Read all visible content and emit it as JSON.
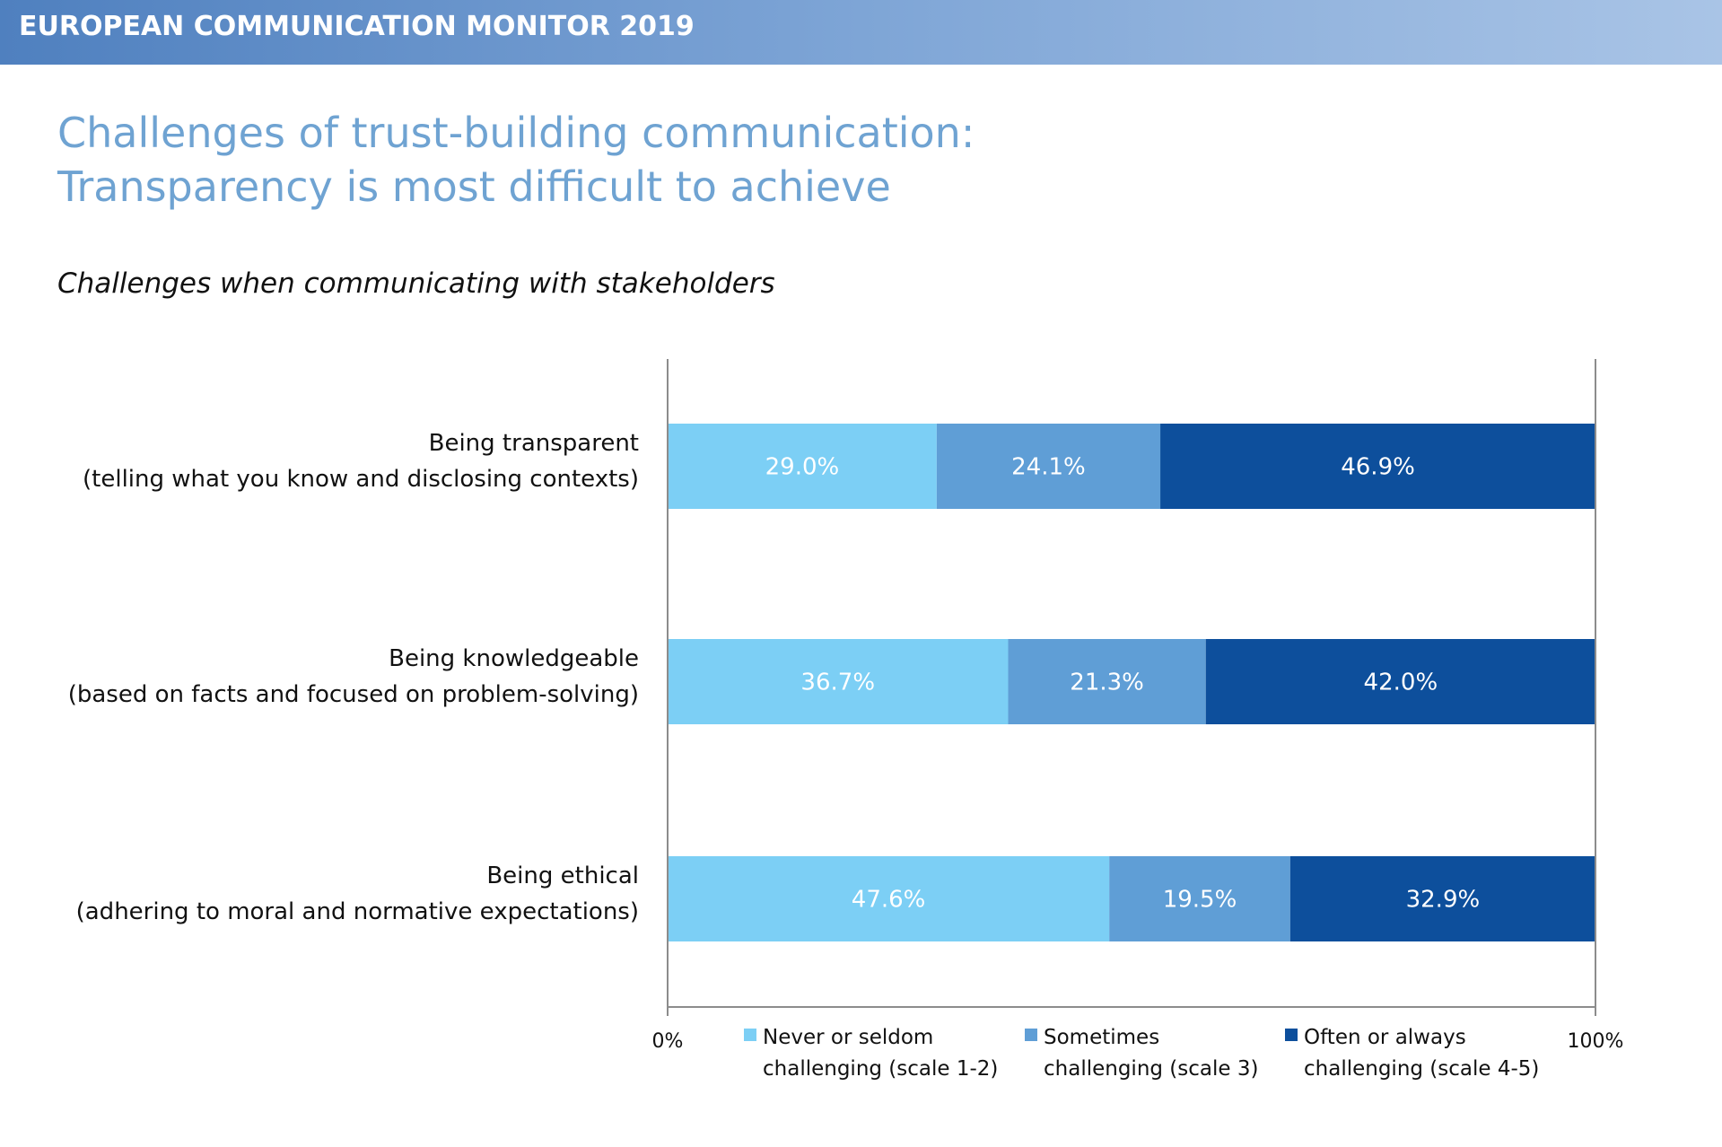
{
  "header": {
    "banner": "EUROPEAN COMMUNICATION MONITOR 2019"
  },
  "slide": {
    "title_line1": "Challenges of trust-building communication:",
    "title_line2": "Transparency is most difficult to achieve",
    "subtitle": "Challenges when communicating with stakeholders"
  },
  "chart_data": {
    "type": "bar",
    "orientation": "horizontal",
    "stacked": true,
    "categories": [
      {
        "line1": "Being transparent",
        "line2": "(telling what you know and disclosing contexts)"
      },
      {
        "line1": "Being knowledgeable",
        "line2": "(based on facts and focused on problem-solving)"
      },
      {
        "line1": "Being ethical",
        "line2": "(adhering to moral and normative expectations)"
      }
    ],
    "series": [
      {
        "line1": "Never or seldom",
        "line2": "challenging (scale 1-2)",
        "color": "#7ccff5",
        "values": [
          29.0,
          36.7,
          47.6
        ]
      },
      {
        "line1": "Sometimes",
        "line2": "challenging (scale 3)",
        "color": "#5f9ed6",
        "values": [
          24.1,
          21.3,
          19.5
        ]
      },
      {
        "line1": "Often or always",
        "line2": "challenging (scale 4-5)",
        "color": "#0d4f9c",
        "values": [
          46.9,
          42.0,
          32.9
        ]
      }
    ],
    "xlim": [
      0,
      100
    ],
    "tick_labels": [
      "0%",
      "100%"
    ],
    "legend_position": "bottom",
    "grid": false
  }
}
